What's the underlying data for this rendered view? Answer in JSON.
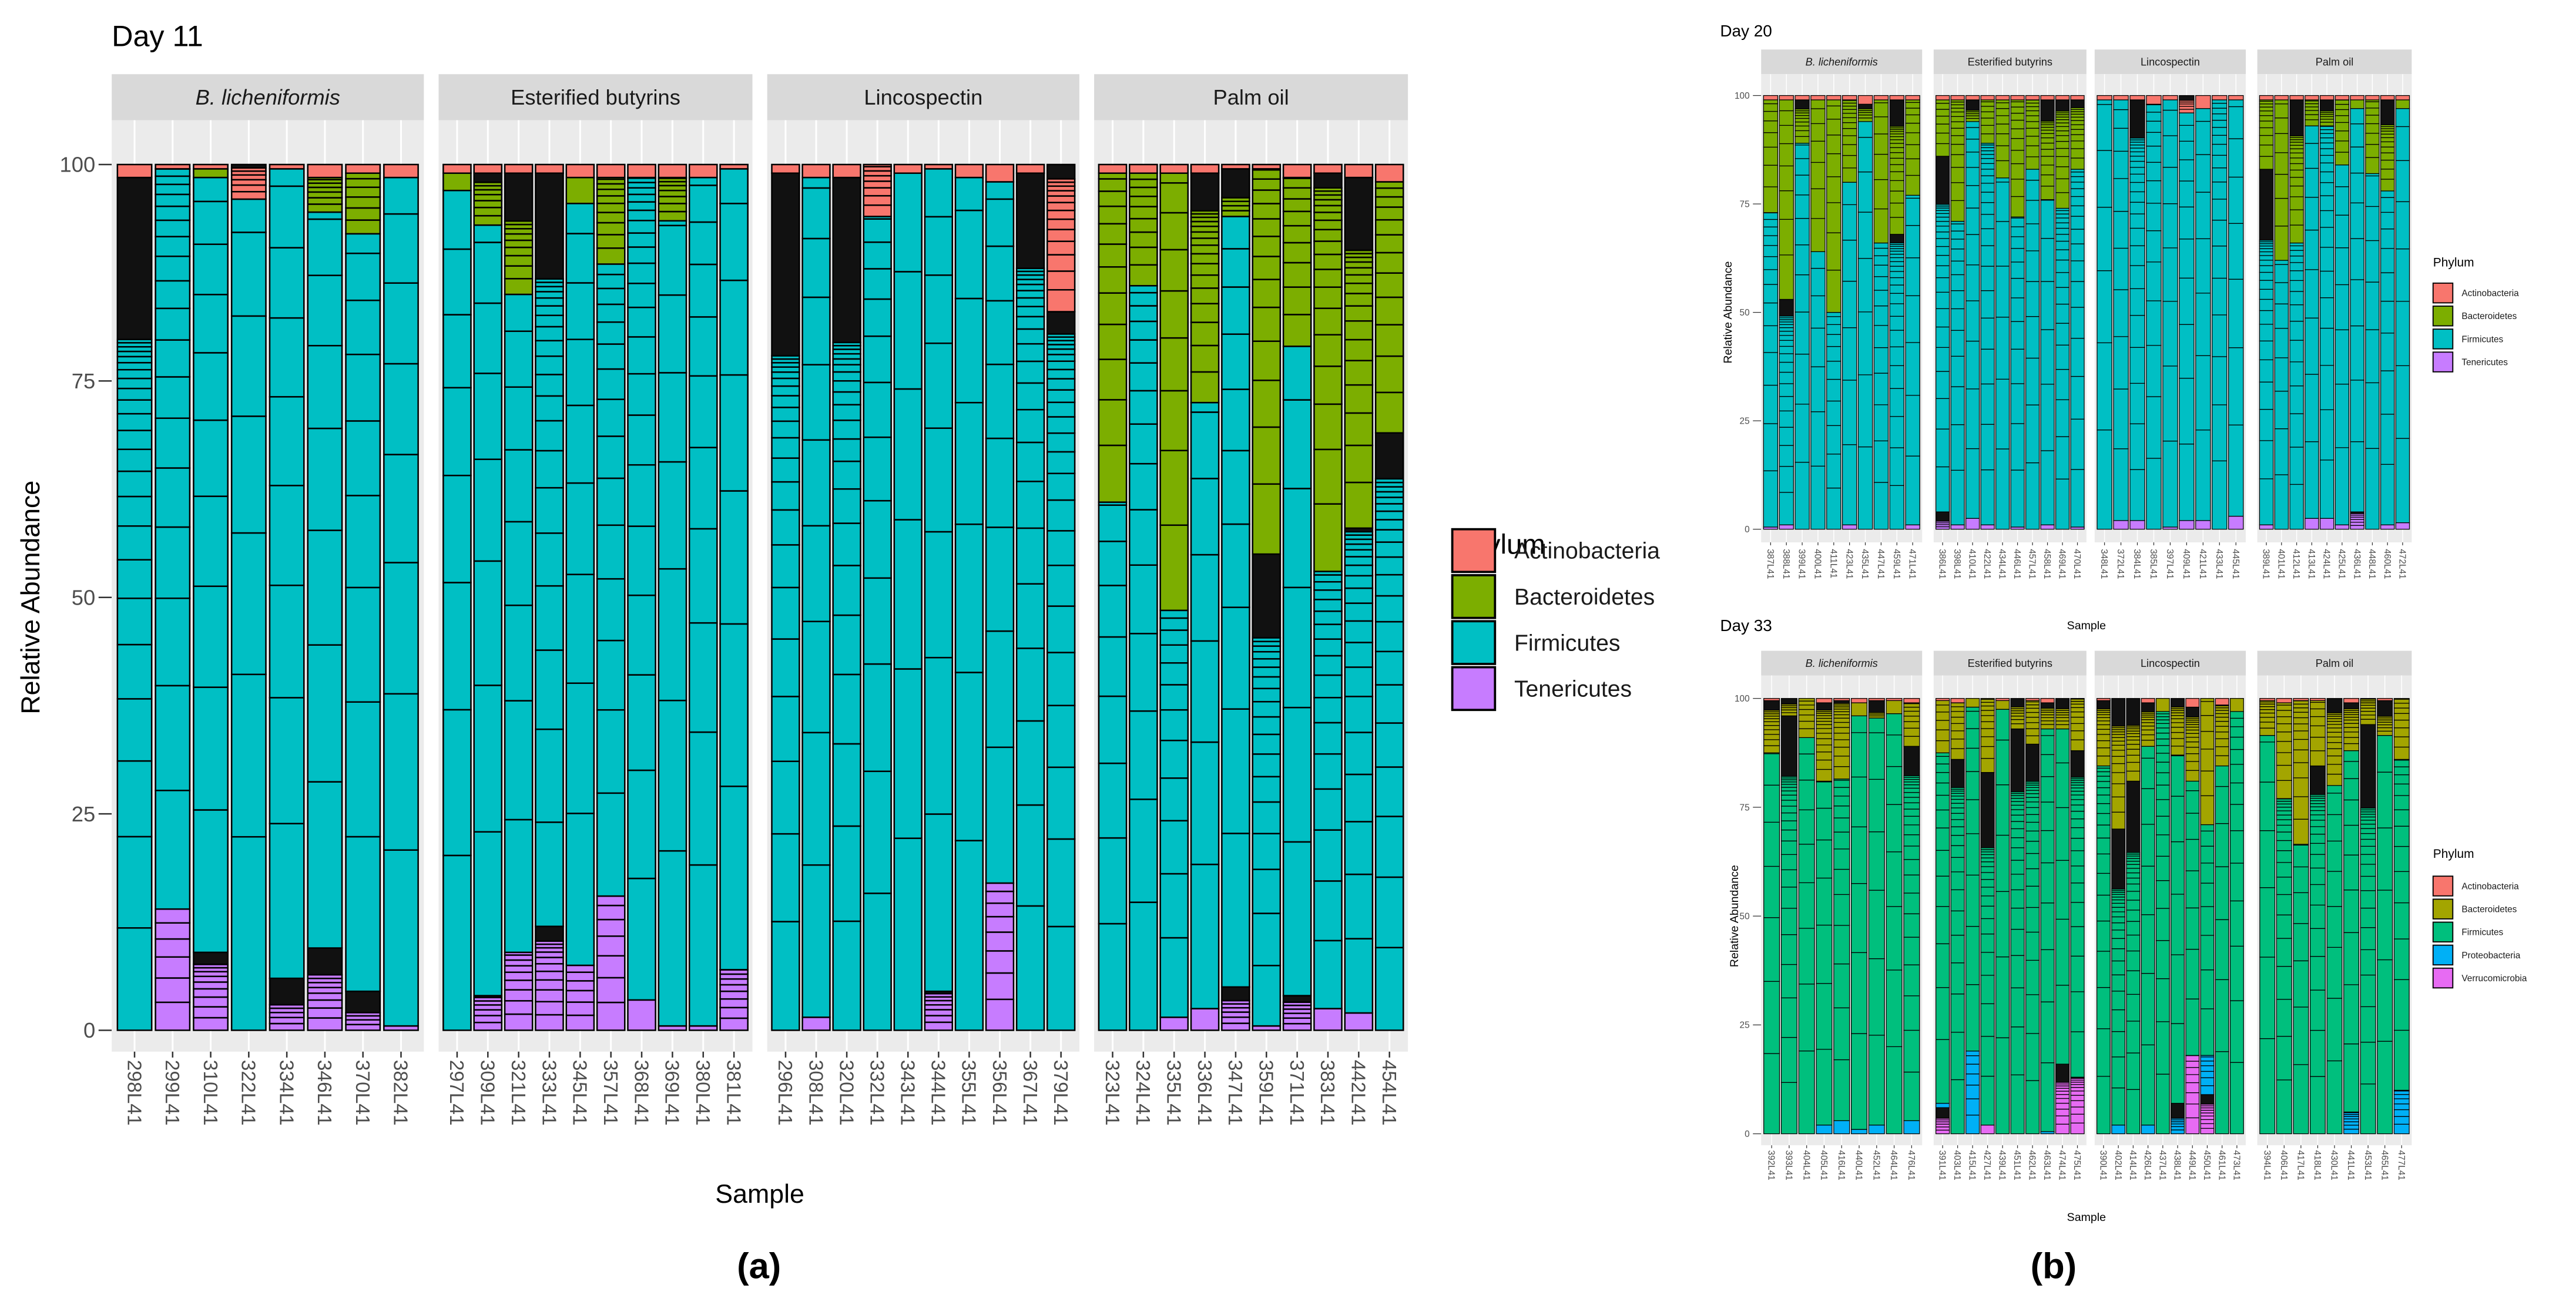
{
  "panel_labels": {
    "a": "(a)",
    "b": "(b)"
  },
  "chart_data": [
    {
      "type": "bar",
      "stacked": true,
      "title": "Day 11",
      "xlabel": "Sample",
      "ylabel": "Relative Abundance",
      "ylim": [
        0,
        100
      ],
      "yticks": [
        "0",
        "25",
        "50",
        "75",
        "100"
      ],
      "legend_title": "Phylum",
      "legend_position": "right",
      "phyla": [
        "Actinobacteria",
        "Bacteroidetes",
        "Firmicutes",
        "Tenericutes"
      ],
      "colors": {
        "Actinobacteria": "#F8766D",
        "Bacteroidetes": "#7CAE00",
        "Firmicutes": "#00BFC4",
        "Tenericutes": "#C77CFF"
      },
      "facets": [
        {
          "name": "B. licheniformis",
          "italic": true,
          "samples": [
            "298L41",
            "299L41",
            "310L41",
            "322L41",
            "334L41",
            "346L41",
            "370L41",
            "382L41"
          ],
          "values": {
            "Actinobacteria": [
              1.5,
              0.5,
              0.5,
              4,
              0.5,
              1.5,
              1,
              1.5
            ],
            "Bacteroidetes": [
              0,
              0,
              1,
              0,
              0,
              4,
              7,
              0
            ],
            "Firmicutes": [
              98.5,
              85.5,
              89.5,
              96,
              93.5,
              85,
              87.5,
              98
            ],
            "Tenericutes": [
              0,
              14,
              9,
              0,
              6,
              9.5,
              4.5,
              0.5
            ]
          }
        },
        {
          "name": "Esterified butyrins",
          "italic": false,
          "samples": [
            "297L41",
            "309L41",
            "321L41",
            "333L41",
            "345L41",
            "357L41",
            "368L41",
            "369L41",
            "380L41",
            "381L41"
          ],
          "values": {
            "Actinobacteria": [
              1,
              1,
              1,
              1,
              1.5,
              1.5,
              1.5,
              1.5,
              1.5,
              0.5
            ],
            "Bacteroidetes": [
              2,
              6,
              14,
              0,
              3,
              10,
              0,
              5,
              0,
              0
            ],
            "Firmicutes": [
              97,
              89,
              76,
              87,
              88,
              73,
              95,
              93,
              98,
              92.5
            ],
            "Tenericutes": [
              0,
              4,
              9,
              12,
              7.5,
              15.5,
              3.5,
              0.5,
              0.5,
              7
            ]
          }
        },
        {
          "name": "Lincospectin",
          "italic": false,
          "samples": [
            "296L41",
            "308L41",
            "320L41",
            "332L41",
            "343L41",
            "344L41",
            "355L41",
            "356L41",
            "367L41",
            "379L41"
          ],
          "values": {
            "Actinobacteria": [
              1,
              1.5,
              1.5,
              6,
              1,
              0.5,
              1.5,
              2,
              1,
              17
            ],
            "Bacteroidetes": [
              0,
              0,
              0,
              0,
              0,
              0,
              0,
              0,
              0,
              0
            ],
            "Firmicutes": [
              99,
              97,
              98.5,
              94,
              99,
              95,
              98.5,
              81,
              99,
              83
            ],
            "Tenericutes": [
              0,
              1.5,
              0,
              0,
              0,
              4.5,
              0,
              17,
              0,
              0
            ]
          }
        },
        {
          "name": "Palm oil",
          "italic": false,
          "samples": [
            "323L41",
            "324L41",
            "335L41",
            "336L41",
            "347L41",
            "359L41",
            "371L41",
            "383L41",
            "442L41",
            "454L41"
          ],
          "values": {
            "Actinobacteria": [
              1,
              1,
              1,
              1,
              0.5,
              0.5,
              1.5,
              1,
              1.5,
              2
            ],
            "Bacteroidetes": [
              38,
              13,
              50.5,
              26.5,
              5.5,
              44.5,
              19.5,
              46,
              40.5,
              29
            ],
            "Firmicutes": [
              61,
              86,
              47,
              70,
              89,
              54.5,
              75,
              50.5,
              56,
              69
            ],
            "Tenericutes": [
              0,
              0,
              1.5,
              2.5,
              5,
              0.5,
              4,
              2.5,
              2,
              0
            ]
          }
        }
      ]
    },
    {
      "type": "bar",
      "stacked": true,
      "title": "Day 20",
      "xlabel": "Sample",
      "ylabel": "Relative Abundance",
      "ylim": [
        0,
        100
      ],
      "yticks": [
        "0",
        "25",
        "50",
        "75",
        "100"
      ],
      "legend_title": "Phylum",
      "legend_position": "right",
      "phyla": [
        "Actinobacteria",
        "Bacteroidetes",
        "Firmicutes",
        "Tenericutes"
      ],
      "colors": {
        "Actinobacteria": "#F8766D",
        "Bacteroidetes": "#7CAE00",
        "Firmicutes": "#00BFC4",
        "Tenericutes": "#C77CFF"
      },
      "facets": [
        {
          "name": "B. licheniformis",
          "italic": true,
          "samples": [
            "387L41",
            "388L41",
            "399L41",
            "400L41",
            "411L41",
            "423L41",
            "435L41",
            "447L41",
            "459L41",
            "471L41"
          ],
          "values": {
            "Actinobacteria": [
              1,
              1,
              1,
              1,
              1,
              1,
              2,
              1,
              1,
              1
            ],
            "Bacteroidetes": [
              26,
              46,
              10,
              35,
              49,
              19,
              4,
              33,
              31,
              22
            ],
            "Firmicutes": [
              72.5,
              52,
              89,
              64,
              50,
              79,
              94,
              66,
              68,
              76
            ],
            "Tenericutes": [
              0.5,
              1,
              0,
              0,
              0,
              1,
              0,
              0,
              0,
              1
            ]
          }
        },
        {
          "name": "Esterified butyrins",
          "italic": false,
          "samples": [
            "386L41",
            "398L41",
            "410L41",
            "422L41",
            "434L41",
            "446L41",
            "457L41",
            "458L41",
            "469L41",
            "470L41"
          ],
          "values": {
            "Actinobacteria": [
              1,
              1,
              1,
              1,
              1,
              1,
              1,
              1,
              1,
              1
            ],
            "Bacteroidetes": [
              13,
              28,
              5,
              10,
              18,
              27,
              16,
              23,
              25,
              16
            ],
            "Firmicutes": [
              82,
              70,
              91.5,
              88,
              81,
              71.5,
              83,
              75,
              74,
              82.5
            ],
            "Tenericutes": [
              4,
              1,
              2.5,
              1,
              0,
              0.5,
              0,
              1,
              0,
              0.5
            ]
          }
        },
        {
          "name": "Lincospectin",
          "italic": false,
          "samples": [
            "348L41",
            "372L41",
            "384L41",
            "385L41",
            "397L41",
            "409L41",
            "421L41",
            "433L41",
            "445L41"
          ],
          "values": {
            "Actinobacteria": [
              1,
              1,
              1,
              2,
              1,
              4,
              3,
              1,
              1
            ],
            "Bacteroidetes": [
              0,
              0,
              0,
              0,
              0,
              0,
              0,
              0,
              0
            ],
            "Firmicutes": [
              99,
              97,
              97,
              98,
              98.5,
              94,
              95,
              99,
              96
            ],
            "Tenericutes": [
              0,
              2,
              2,
              0,
              0.5,
              2,
              2,
              0,
              3
            ]
          }
        },
        {
          "name": "Palm oil",
          "italic": false,
          "samples": [
            "389L41",
            "401L41",
            "412L41",
            "413L41",
            "424L41",
            "425L41",
            "436L41",
            "448L41",
            "460L41",
            "472L41"
          ],
          "values": {
            "Actinobacteria": [
              1,
              1,
              1,
              1,
              1,
              1,
              1,
              1,
              1,
              1
            ],
            "Bacteroidetes": [
              16,
              37,
              33,
              6,
              6,
              15,
              2,
              17,
              21,
              2
            ],
            "Firmicutes": [
              82,
              62,
              66,
              90.5,
              90.5,
              83,
              93,
              82,
              77,
              95.5
            ],
            "Tenericutes": [
              1,
              0,
              0,
              2.5,
              2.5,
              1,
              4,
              0,
              1,
              1.5
            ]
          }
        }
      ]
    },
    {
      "type": "bar",
      "stacked": true,
      "title": "Day 33",
      "xlabel": "Sample",
      "ylabel": "Relative Abundance",
      "ylim": [
        0,
        100
      ],
      "yticks": [
        "0",
        "25",
        "50",
        "75",
        "100"
      ],
      "legend_title": "Phylum",
      "legend_position": "right",
      "phyla": [
        "Actinobacteria",
        "Bacteroidetes",
        "Firmicutes",
        "Proteobacteria",
        "Verrucomicrobia"
      ],
      "colors": {
        "Actinobacteria": "#F8766D",
        "Bacteroidetes": "#A3A500",
        "Firmicutes": "#00BF7D",
        "Proteobacteria": "#00B0F6",
        "Verrucomicrobia": "#E76BF3"
      },
      "facets": [
        {
          "name": "B. licheniformis",
          "italic": true,
          "samples": [
            "392L41",
            "393L41",
            "404L41",
            "405L41",
            "416L41",
            "440L41",
            "452L41",
            "464L41",
            "476L41"
          ],
          "values": {
            "Actinobacteria": [
              0.5,
              0,
              0,
              1,
              0.5,
              1,
              0.5,
              0.5,
              1
            ],
            "Bacteroidetes": [
              12,
              4,
              9,
              18,
              18,
              3,
              4,
              3,
              10
            ],
            "Firmicutes": [
              87.5,
              96,
              91,
              79,
              78.5,
              95,
              93.5,
              96.5,
              86
            ],
            "Proteobacteria": [
              0,
              0,
              0,
              2,
              3,
              1,
              2,
              0,
              3
            ],
            "Verrucomicrobia": [
              0,
              0,
              0,
              0,
              0,
              0,
              0,
              0,
              0
            ]
          }
        },
        {
          "name": "Esterified butyrins",
          "italic": false,
          "samples": [
            "391L41",
            "403L41",
            "415L41",
            "427L41",
            "439L41",
            "451L41",
            "462L41",
            "463L41",
            "474L41",
            "475L41"
          ],
          "values": {
            "Actinobacteria": [
              0.5,
              1,
              0,
              0,
              0.5,
              0,
              0.5,
              1,
              0,
              0
            ],
            "Bacteroidetes": [
              12,
              13,
              2,
              17,
              2,
              7,
              10,
              6,
              7,
              12
            ],
            "Firmicutes": [
              80.5,
              86,
              79,
              81,
              97.5,
              93,
              89.5,
              92.5,
              77,
              75
            ],
            "Proteobacteria": [
              1,
              0,
              19,
              0,
              0,
              0,
              0,
              0.5,
              0,
              0
            ],
            "Verrucomicrobia": [
              6,
              0,
              0,
              2,
              0,
              0,
              0,
              0,
              16,
              13
            ]
          }
        },
        {
          "name": "Lincospectin",
          "italic": false,
          "samples": [
            "390L41",
            "402L41",
            "414L41",
            "426L41",
            "437L41",
            "438L41",
            "449L41",
            "450L41",
            "461L41",
            "473L41"
          ],
          "values": {
            "Actinobacteria": [
              0.5,
              0,
              0,
              1,
              0,
              0,
              2,
              0,
              1.5,
              0
            ],
            "Bacteroidetes": [
              15,
              30,
              19,
              10,
              3,
              13,
              17,
              29,
              14,
              3
            ],
            "Firmicutes": [
              84.5,
              68,
              81,
              87,
              97,
              80,
              63,
              53,
              84.5,
              97
            ],
            "Proteobacteria": [
              0,
              2,
              0,
              2,
              0,
              7,
              0,
              9,
              0,
              0
            ],
            "Verrucomicrobia": [
              0,
              0,
              0,
              0,
              0,
              0,
              18,
              9,
              0,
              0
            ]
          }
        },
        {
          "name": "Palm oil",
          "italic": false,
          "samples": [
            "394L41",
            "406L41",
            "417L41",
            "418L41",
            "430L41",
            "441L41",
            "453L41",
            "465L41",
            "477L41"
          ],
          "values": {
            "Actinobacteria": [
              0.5,
              1,
              0.5,
              0.5,
              0,
              1,
              0,
              0.5,
              0
            ],
            "Bacteroidetes": [
              8,
              22,
              33,
              15,
              20,
              11,
              6,
              8,
              14
            ],
            "Firmicutes": [
              91.5,
              77,
              66.5,
              84.5,
              80,
              83,
              94,
              91.5,
              76
            ],
            "Proteobacteria": [
              0,
              0,
              0,
              0,
              0,
              5,
              0,
              0,
              10
            ],
            "Verrucomicrobia": [
              0,
              0,
              0,
              0,
              0,
              0,
              0,
              0,
              0
            ]
          }
        }
      ]
    }
  ]
}
